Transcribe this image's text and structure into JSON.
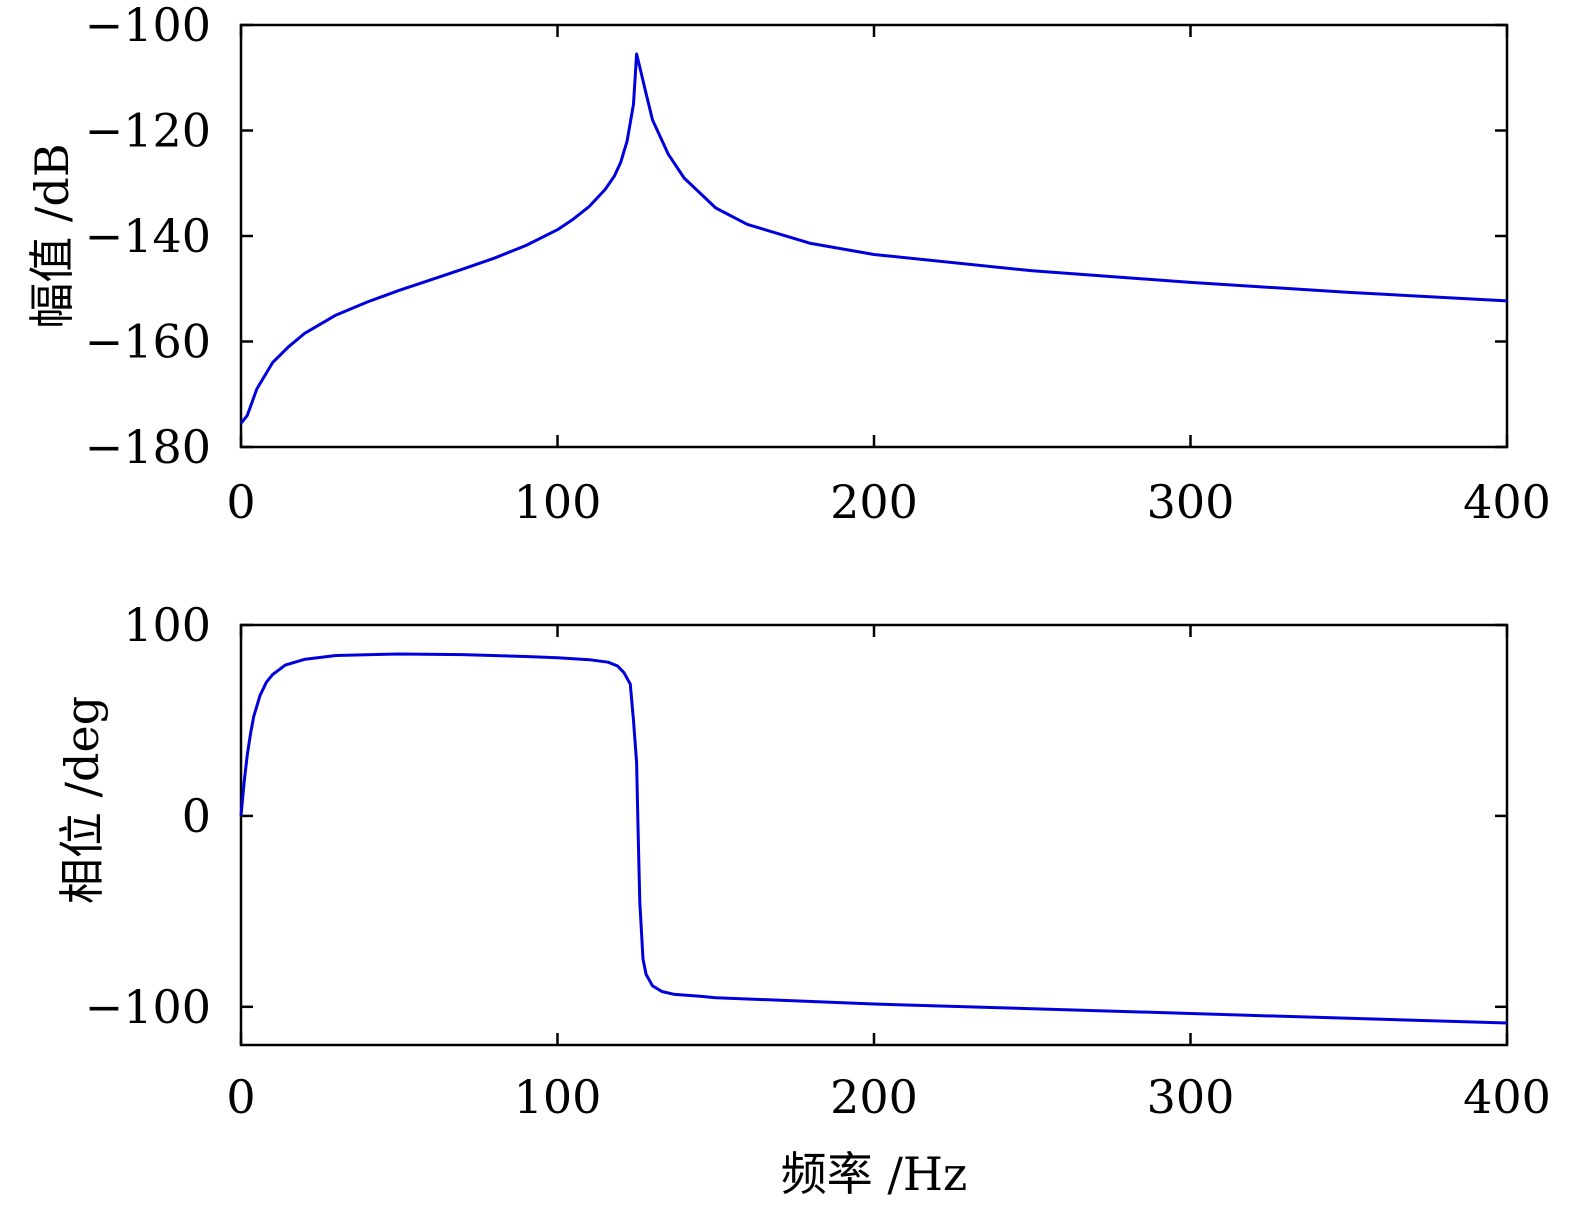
{
  "chart_data": [
    {
      "type": "line",
      "xlabel": "",
      "ylabel": "幅值 /dB",
      "xlim": [
        0,
        400
      ],
      "ylim": [
        -180,
        -100
      ],
      "xticks": [
        "0",
        "100",
        "200",
        "300",
        "400"
      ],
      "yticks": [
        "−180",
        "−160",
        "−140",
        "−120",
        "−100"
      ],
      "grid": false,
      "series": [
        {
          "color": "#0000dd",
          "x": [
            0,
            2,
            5,
            10,
            15,
            20,
            30,
            40,
            50,
            60,
            70,
            80,
            90,
            100,
            105,
            110,
            115,
            118,
            120,
            122,
            124,
            125,
            126,
            128,
            130,
            135,
            140,
            150,
            160,
            180,
            200,
            250,
            300,
            350,
            400
          ],
          "y": [
            -175.5,
            -174,
            -169,
            -164,
            -161,
            -158.5,
            -155,
            -152.5,
            -150.3,
            -148.3,
            -146.3,
            -144.2,
            -141.8,
            -138.8,
            -136.8,
            -134.4,
            -131.2,
            -128.6,
            -126,
            -122,
            -115,
            -105.5,
            -108,
            -113,
            -118,
            -124.5,
            -129,
            -134.7,
            -137.8,
            -141.4,
            -143.5,
            -146.6,
            -148.8,
            -150.7,
            -152.3
          ]
        }
      ]
    },
    {
      "type": "line",
      "xlabel": "频率 /Hz",
      "ylabel": "相位 /deg",
      "xlim": [
        0,
        400
      ],
      "ylim": [
        -120,
        100
      ],
      "xticks": [
        "0",
        "100",
        "200",
        "300",
        "400"
      ],
      "yticks": [
        "−100",
        "0",
        "100"
      ],
      "grid": false,
      "series": [
        {
          "color": "#0000dd",
          "x": [
            0,
            1,
            2,
            3,
            4,
            6,
            8,
            10,
            14,
            20,
            30,
            50,
            70,
            90,
            100,
            110,
            116,
            119,
            121,
            123,
            124,
            125,
            125.5,
            126,
            127,
            128,
            130,
            133,
            137,
            145,
            150,
            200,
            250,
            300,
            350,
            400
          ],
          "y": [
            0,
            18,
            32,
            43,
            52,
            63,
            70,
            74,
            79,
            82,
            84,
            84.8,
            84.5,
            83.5,
            82.8,
            81.8,
            80.5,
            78.5,
            75,
            69,
            50,
            28,
            -10,
            -45,
            -75,
            -83,
            -89,
            -92,
            -93.5,
            -94.5,
            -95.2,
            -98.5,
            -101,
            -103.5,
            -106,
            -108.5
          ]
        }
      ]
    }
  ]
}
